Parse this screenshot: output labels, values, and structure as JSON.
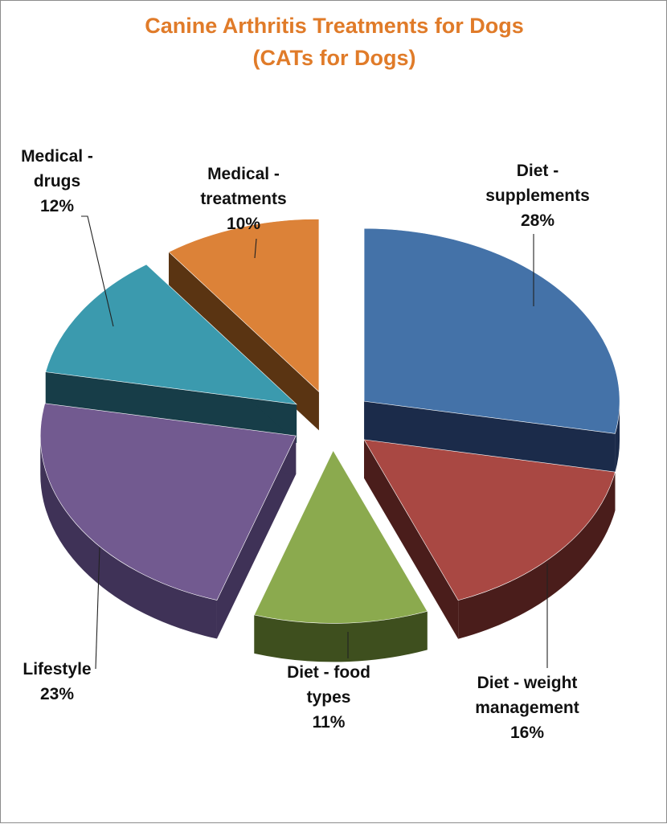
{
  "chart_data": {
    "type": "pie",
    "title_lines": [
      "Canine Arthritis Treatments for Dogs",
      "(CATs for Dogs)"
    ],
    "title_color": "#E07B29",
    "slices": [
      {
        "label": "Diet - supplements",
        "label_lines": [
          "Diet -",
          "supplements"
        ],
        "value": 28,
        "display": "28%",
        "color": "#4472A8",
        "side_color": "#1B2B4A"
      },
      {
        "label": "Diet - weight management",
        "label_lines": [
          "Diet - weight",
          "management"
        ],
        "value": 16,
        "display": "16%",
        "color": "#A94843",
        "side_color": "#4A1D1B"
      },
      {
        "label": "Diet - food types",
        "label_lines": [
          "Diet - food",
          "types"
        ],
        "value": 11,
        "display": "11%",
        "color": "#8BAA4E",
        "side_color": "#3E4F1E"
      },
      {
        "label": "Lifestyle",
        "label_lines": [
          "Lifestyle"
        ],
        "value": 23,
        "display": "23%",
        "color": "#725A90",
        "side_color": "#3F3257"
      },
      {
        "label": "Medical - drugs",
        "label_lines": [
          "Medical -",
          "drugs"
        ],
        "value": 12,
        "display": "12%",
        "color": "#3B9AAE",
        "side_color": "#173D48"
      },
      {
        "label": "Medical - treatments",
        "label_lines": [
          "Medical -",
          "treatments"
        ],
        "value": 10,
        "display": "10%",
        "color": "#DC8238",
        "side_color": "#5A3412"
      }
    ]
  }
}
